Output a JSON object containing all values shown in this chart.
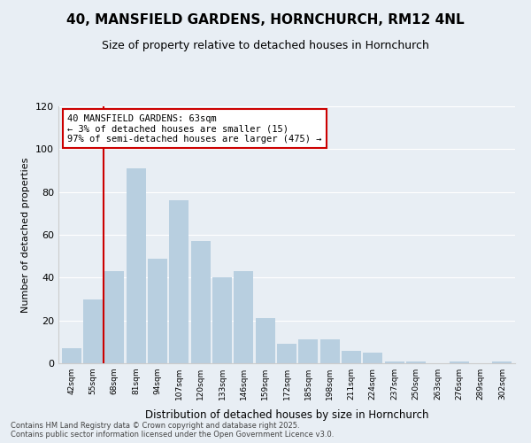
{
  "title": "40, MANSFIELD GARDENS, HORNCHURCH, RM12 4NL",
  "subtitle": "Size of property relative to detached houses in Hornchurch",
  "xlabel": "Distribution of detached houses by size in Hornchurch",
  "ylabel": "Number of detached properties",
  "categories": [
    "42sqm",
    "55sqm",
    "68sqm",
    "81sqm",
    "94sqm",
    "107sqm",
    "120sqm",
    "133sqm",
    "146sqm",
    "159sqm",
    "172sqm",
    "185sqm",
    "198sqm",
    "211sqm",
    "224sqm",
    "237sqm",
    "250sqm",
    "263sqm",
    "276sqm",
    "289sqm",
    "302sqm"
  ],
  "values": [
    7,
    30,
    43,
    91,
    49,
    76,
    57,
    40,
    43,
    21,
    9,
    11,
    11,
    6,
    5,
    1,
    1,
    0,
    1,
    0,
    1
  ],
  "bar_color": "#b8cfe0",
  "annotation_box_text": "40 MANSFIELD GARDENS: 63sqm\n← 3% of detached houses are smaller (15)\n97% of semi-detached houses are larger (475) →",
  "annotation_box_edgecolor": "#cc0000",
  "redline_x": 1.5,
  "ylim": [
    0,
    120
  ],
  "yticks": [
    0,
    20,
    40,
    60,
    80,
    100,
    120
  ],
  "footer_line1": "Contains HM Land Registry data © Crown copyright and database right 2025.",
  "footer_line2": "Contains public sector information licensed under the Open Government Licence v3.0.",
  "bg_color": "#e8eef4",
  "plot_bg_color": "#e8eef4",
  "grid_color": "#ffffff",
  "title_fontsize": 11,
  "subtitle_fontsize": 9,
  "bar_width": 0.9
}
